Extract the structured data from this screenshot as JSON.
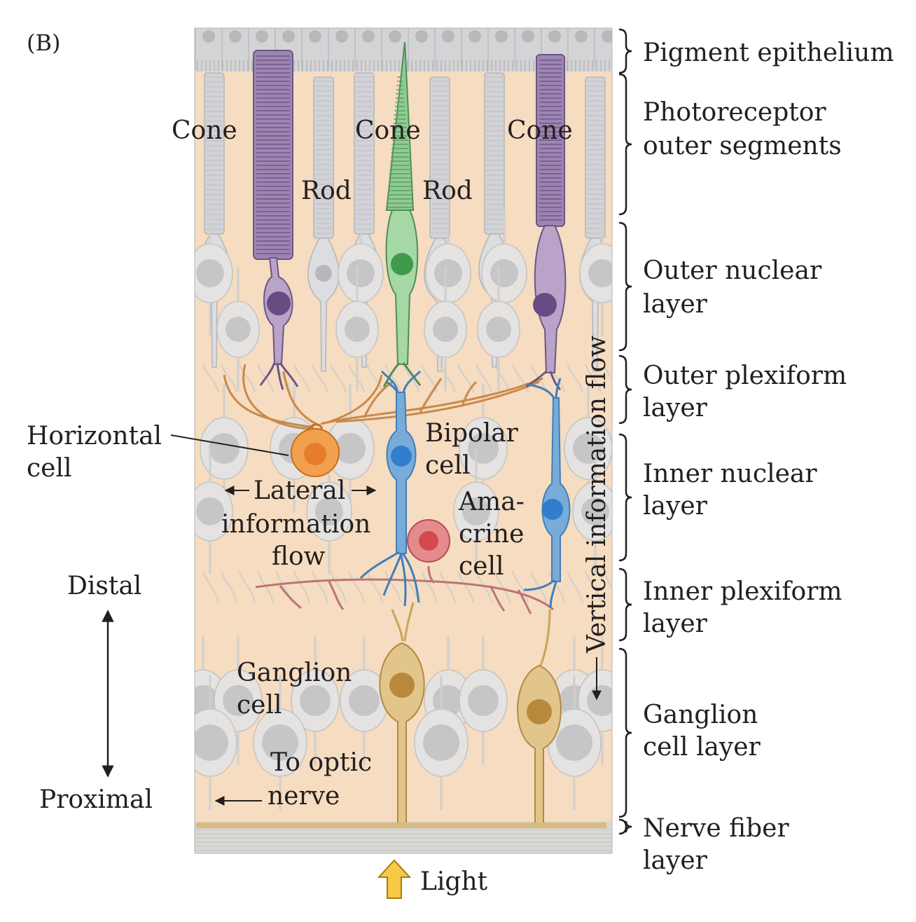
{
  "panel_label": "(B)",
  "layers": [
    {
      "id": "pigment",
      "lines": [
        "Pigment epithelium"
      ]
    },
    {
      "id": "outer-segments",
      "lines": [
        "Photoreceptor",
        "outer segments"
      ]
    },
    {
      "id": "outer-nuclear",
      "lines": [
        "Outer nuclear",
        "layer"
      ]
    },
    {
      "id": "outer-plexiform",
      "lines": [
        "Outer plexiform",
        "layer"
      ]
    },
    {
      "id": "inner-nuclear",
      "lines": [
        "Inner nuclear",
        "layer"
      ]
    },
    {
      "id": "inner-plexiform",
      "lines": [
        "Inner plexiform",
        "layer"
      ]
    },
    {
      "id": "ganglion-layer",
      "lines": [
        "Ganglion",
        "cell layer"
      ]
    },
    {
      "id": "nerve-fiber",
      "lines": [
        "Nerve fiber",
        "layer"
      ]
    }
  ],
  "cells": {
    "cone_left": "Cone",
    "cone_mid": "Cone",
    "cone_right": "Cone",
    "rod_left": "Rod",
    "rod_right": "Rod",
    "horizontal": [
      "Horizontal",
      "cell"
    ],
    "bipolar": [
      "Bipolar",
      "cell"
    ],
    "amacrine": [
      "Ama-",
      "crine",
      "cell"
    ],
    "ganglion": [
      "Ganglion",
      "cell"
    ]
  },
  "flows": {
    "lateral": [
      "Lateral",
      "information",
      "flow"
    ],
    "vertical": "Vertical information flow",
    "optic": [
      "To optic",
      "nerve"
    ]
  },
  "axis": {
    "distal": "Distal",
    "proximal": "Proximal"
  },
  "light": "Light",
  "colors": {
    "background": "#f6dcc0",
    "pigment": "#d4d4d6",
    "rod": "#d2d3d6",
    "cone_purple": "#9c85b2",
    "cone_purple_nucleus": "#6a4a84",
    "cone_green": "#8fcb93",
    "cone_green_nucleus": "#3f9a4a",
    "horizontal": "#f1a04d",
    "bipolar": "#5a96cf",
    "amacrine": "#e07a7e",
    "ganglion": "#e2c58a",
    "ganglion_nucleus": "#b9893b",
    "light_arrow": "#f7c945"
  }
}
